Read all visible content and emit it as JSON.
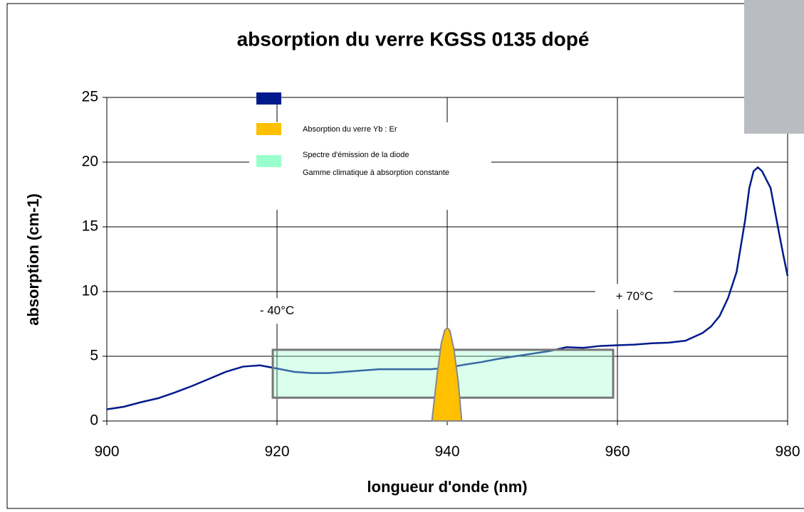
{
  "chart_data": {
    "type": "line",
    "title": "absorption du verre KGSS 0135 dopé",
    "x_label": "longueur d'onde (nm)",
    "y_label": "absorption (cm-1)",
    "xlim": [
      900,
      980
    ],
    "ylim": [
      0,
      25
    ],
    "xticks": [
      900,
      920,
      940,
      960,
      980
    ],
    "yticks": [
      0,
      5,
      10,
      15,
      20,
      25
    ],
    "grid": true,
    "annotations": [
      {
        "text": "- 40°C",
        "x": 920,
        "y": 8.5
      },
      {
        "text": "+ 70°C",
        "x": 962,
        "y": 9.6
      }
    ],
    "series": [
      {
        "name": "Absorption du verre Yb : Er",
        "color": "#001a8c",
        "x": [
          900,
          902,
          904,
          906,
          908,
          910,
          912,
          914,
          916,
          918,
          920,
          922,
          924,
          926,
          928,
          930,
          932,
          934,
          936,
          938,
          940,
          942,
          944,
          946,
          948,
          950,
          952,
          954,
          956,
          958,
          960,
          962,
          964,
          966,
          968,
          970,
          971,
          972,
          973,
          974,
          975,
          975.5,
          976,
          976.5,
          977,
          978,
          979,
          979.5,
          980
        ],
        "values": [
          0.9,
          1.1,
          1.45,
          1.75,
          2.2,
          2.7,
          3.25,
          3.8,
          4.2,
          4.3,
          4.05,
          3.8,
          3.7,
          3.7,
          3.8,
          3.9,
          4.0,
          4.0,
          4.0,
          4.0,
          4.1,
          4.35,
          4.55,
          4.8,
          5.0,
          5.2,
          5.4,
          5.7,
          5.65,
          5.8,
          5.85,
          5.9,
          6.0,
          6.05,
          6.2,
          6.8,
          7.3,
          8.1,
          9.5,
          11.5,
          15.5,
          18,
          19.3,
          19.6,
          19.3,
          18,
          14.5,
          12.8,
          11.2
        ]
      },
      {
        "name": "Spectre d'émission de la diode",
        "color": "#ffc000",
        "x": [
          938.2,
          938.8,
          939.3,
          939.7,
          940,
          940.3,
          940.8,
          941.3,
          941.7
        ],
        "values": [
          0,
          3.5,
          6,
          7,
          7.2,
          7,
          5.5,
          3,
          0
        ]
      },
      {
        "name": "Gamme climatique à absorption constante",
        "color": "#99ffcc",
        "x": [
          919.5,
          959.5
        ],
        "values": [
          1.8,
          5.5
        ]
      }
    ]
  }
}
